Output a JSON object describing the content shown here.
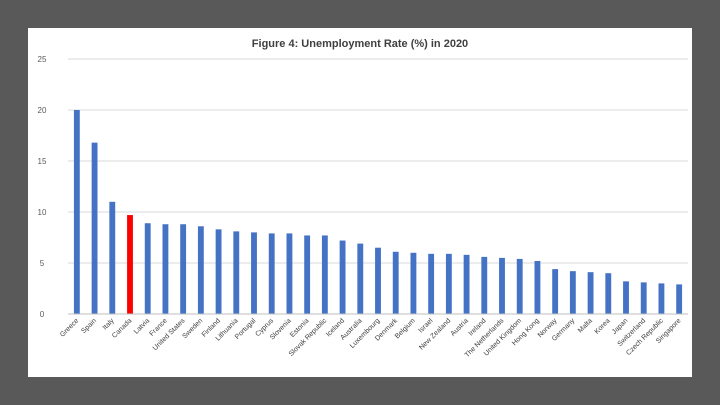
{
  "chart_data": {
    "type": "bar",
    "title": "Figure 4: Unemployment Rate (%) in 2020",
    "xlabel": "",
    "ylabel": "",
    "ylim": [
      0,
      25
    ],
    "yticks": [
      0,
      5,
      10,
      15,
      20,
      25
    ],
    "grid": true,
    "legend": "none",
    "colors": {
      "default": "#4472c4",
      "highlight": "#ff0000"
    },
    "highlight_category": "Canada",
    "categories": [
      "Greece",
      "Spain",
      "Italy",
      "Canada",
      "Latvia",
      "France",
      "United States",
      "Sweden",
      "Finland",
      "Lithuania",
      "Portugal",
      "Cyprus",
      "Slovenia",
      "Estonia",
      "Slovak Republic",
      "Iceland",
      "Australia",
      "Luxembourg",
      "Denmark",
      "Belgium",
      "Israel",
      "New Zealand",
      "Austria",
      "Ireland",
      "The Netherlands",
      "United Kingdom",
      "Hong Kong",
      "Norway",
      "Germany",
      "Malta",
      "Korea",
      "Japan",
      "Switzerland",
      "Czech Republic",
      "Singapore"
    ],
    "values": [
      20.0,
      16.8,
      11.0,
      9.7,
      8.9,
      8.8,
      8.8,
      8.6,
      8.3,
      8.1,
      8.0,
      7.9,
      7.9,
      7.7,
      7.7,
      7.2,
      6.9,
      6.5,
      6.1,
      6.0,
      5.9,
      5.9,
      5.8,
      5.6,
      5.5,
      5.4,
      5.2,
      4.4,
      4.2,
      4.1,
      4.0,
      3.2,
      3.1,
      3.0,
      2.9
    ]
  }
}
